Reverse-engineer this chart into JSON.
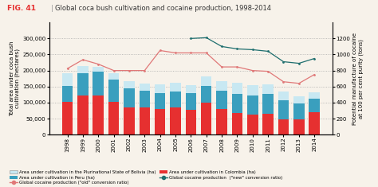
{
  "title": "Global coca bush cultivation and cocaine production, 1998-2014",
  "fig_label": "FIG. 41",
  "years": [
    1998,
    1999,
    2000,
    2001,
    2002,
    2003,
    2004,
    2005,
    2006,
    2007,
    2008,
    2009,
    2010,
    2011,
    2012,
    2013,
    2014
  ],
  "bolivia": [
    38000,
    21800,
    14600,
    19900,
    21600,
    22000,
    27700,
    26500,
    25300,
    28900,
    30500,
    35000,
    31000,
    31000,
    25300,
    23000,
    20400
  ],
  "peru": [
    51000,
    69200,
    73600,
    70300,
    59000,
    52100,
    50300,
    48200,
    50600,
    53700,
    56100,
    59900,
    61200,
    62500,
    60400,
    49800,
    42900
  ],
  "colombia": [
    101800,
    122500,
    122300,
    102000,
    86000,
    86000,
    80000,
    86000,
    78000,
    99000,
    81000,
    68000,
    62000,
    64000,
    48000,
    48000,
    69000
  ],
  "old_ratio": [
    825,
    935,
    880,
    800,
    800,
    800,
    1050,
    1020,
    1020,
    1020,
    845,
    845,
    800,
    790,
    660,
    640,
    750
  ],
  "new_ratio": [
    null,
    null,
    null,
    null,
    null,
    null,
    null,
    null,
    1200,
    1210,
    1100,
    1070,
    1060,
    1040,
    910,
    890,
    950
  ],
  "color_bolivia": "#c8e8f2",
  "color_peru": "#3a9fbe",
  "color_colombia": "#e63030",
  "color_old": "#e07878",
  "color_new": "#1e6e6e",
  "ylabel_left": "Total area under coca bush\ncultivation (hectares)",
  "ylabel_right": "Potential manufacture of cocaine\nat 100 per cent purity (tons)",
  "ylim_left": [
    0,
    350000
  ],
  "ylim_right": [
    0,
    1400
  ],
  "yticks_left": [
    0,
    50000,
    100000,
    150000,
    200000,
    250000,
    300000
  ],
  "yticks_right": [
    0,
    200,
    400,
    600,
    800,
    1000,
    1200
  ],
  "bg_color": "#f7f2ea"
}
